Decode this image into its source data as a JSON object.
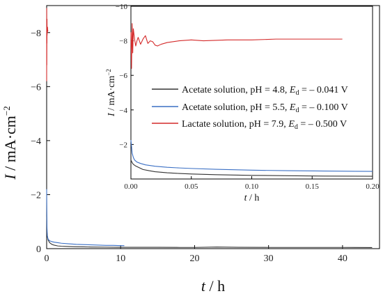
{
  "chart_data": [
    {
      "type": "line",
      "xlabel_var": "t",
      "xlabel_unit": " / h",
      "ylabel_var": "I",
      "ylabel_unit": " / mA·cm",
      "ylabel_exp": "−2",
      "xlim": [
        0,
        45
      ],
      "ylim": [
        0,
        -9
      ],
      "xticks": [
        0,
        10,
        20,
        30,
        40
      ],
      "xtick_labels": [
        "0",
        "10",
        "20",
        "30",
        "40"
      ],
      "yticks": [
        0,
        -2,
        -4,
        -6,
        -8
      ],
      "ytick_labels": [
        "0",
        "−2",
        "−4",
        "−6",
        "−8"
      ],
      "series": [
        {
          "color": "#333333",
          "x": [
            0,
            0.03,
            0.06,
            0.1,
            0.2,
            0.4,
            0.7,
            1,
            1.5,
            2,
            3,
            4,
            5,
            6,
            8,
            10,
            12,
            15,
            18,
            20,
            23,
            26,
            30,
            35,
            40,
            44
          ],
          "y": [
            -1.2,
            -0.85,
            -0.6,
            -0.45,
            -0.32,
            -0.22,
            -0.16,
            -0.13,
            -0.1,
            -0.09,
            -0.08,
            -0.07,
            -0.065,
            -0.06,
            -0.055,
            -0.05,
            -0.05,
            -0.05,
            -0.045,
            -0.045,
            -0.06,
            -0.05,
            -0.045,
            -0.045,
            -0.045,
            -0.04
          ]
        },
        {
          "color": "#3a6fc4",
          "x": [
            0,
            0.02,
            0.04,
            0.06,
            0.1,
            0.2,
            0.4,
            0.7,
            1,
            1.5,
            2,
            3,
            4,
            5,
            6,
            7,
            8,
            9,
            10,
            10.5
          ],
          "y": [
            -2.2,
            -1.5,
            -0.9,
            -0.6,
            -0.45,
            -0.35,
            -0.29,
            -0.26,
            -0.24,
            -0.22,
            -0.2,
            -0.18,
            -0.16,
            -0.15,
            -0.14,
            -0.13,
            -0.12,
            -0.12,
            -0.11,
            -0.11
          ]
        },
        {
          "color": "#d42a2a",
          "x": [
            0,
            0.01,
            0.02,
            0.03,
            0.04,
            0.05,
            0.06,
            0.08,
            0.1,
            0.12,
            0.14,
            0.16,
            0.175
          ],
          "y": [
            -6.2,
            -8.9,
            -6.8,
            -8.3,
            -7.6,
            -8.5,
            -7.9,
            -8.1,
            -8.0,
            -8.2,
            -8.05,
            -8.1,
            -8.1
          ]
        }
      ]
    },
    {
      "type": "line",
      "inset": true,
      "xlabel_var": "t",
      "xlabel_unit": " / h",
      "ylabel_var": "I",
      "ylabel_unit": " / mA·cm",
      "ylabel_exp": "−2",
      "xlim": [
        0,
        0.2
      ],
      "ylim": [
        0,
        -10
      ],
      "xticks": [
        0,
        0.05,
        0.1,
        0.15,
        0.2
      ],
      "xtick_labels": [
        "0.00",
        "0.05",
        "0.10",
        "0.15",
        "0.20"
      ],
      "yticks": [
        -2,
        -4,
        -6,
        -8,
        -10
      ],
      "ytick_labels": [
        "−2",
        "−4",
        "−6",
        "−8",
        "−10"
      ],
      "legend_position": "center-right",
      "series": [
        {
          "name_pre": "Acetate solution, pH = 4.8, ",
          "name_post": " = – 0.041 V",
          "color": "#333333",
          "x": [
            0,
            0.001,
            0.002,
            0.004,
            0.007,
            0.01,
            0.015,
            0.02,
            0.03,
            0.04,
            0.05,
            0.07,
            0.1,
            0.13,
            0.16,
            0.2
          ],
          "y": [
            -1.1,
            -0.95,
            -0.85,
            -0.75,
            -0.65,
            -0.55,
            -0.48,
            -0.42,
            -0.36,
            -0.32,
            -0.29,
            -0.25,
            -0.21,
            -0.19,
            -0.17,
            -0.16
          ]
        },
        {
          "name_pre": "Acetate solution, pH = 5.5, ",
          "name_post": " = – 0.100 V",
          "color": "#3a6fc4",
          "x": [
            0,
            0.0005,
            0.001,
            0.002,
            0.003,
            0.005,
            0.008,
            0.012,
            0.02,
            0.03,
            0.04,
            0.05,
            0.07,
            0.1,
            0.13,
            0.16,
            0.2
          ],
          "y": [
            -2.25,
            -1.9,
            -1.5,
            -1.25,
            -1.1,
            -0.98,
            -0.9,
            -0.82,
            -0.74,
            -0.68,
            -0.64,
            -0.61,
            -0.56,
            -0.51,
            -0.48,
            -0.46,
            -0.44
          ]
        },
        {
          "name_pre": "Lactate solution, pH = 7.9, ",
          "name_post": " = – 0.500 V",
          "color": "#d42a2a",
          "x": [
            0,
            0.0005,
            0.001,
            0.0015,
            0.002,
            0.003,
            0.004,
            0.005,
            0.006,
            0.008,
            0.01,
            0.012,
            0.014,
            0.016,
            0.018,
            0.02,
            0.022,
            0.025,
            0.03,
            0.035,
            0.04,
            0.05,
            0.06,
            0.08,
            0.1,
            0.12,
            0.14,
            0.16,
            0.175
          ],
          "y": [
            -8.5,
            -6.4,
            -9.0,
            -7.3,
            -8.7,
            -8.1,
            -7.7,
            -8.0,
            -8.2,
            -7.8,
            -8.1,
            -8.3,
            -7.85,
            -8.0,
            -7.95,
            -7.75,
            -7.7,
            -7.8,
            -7.9,
            -7.95,
            -8.0,
            -8.05,
            -8.0,
            -8.05,
            -8.05,
            -8.1,
            -8.1,
            -8.1,
            -8.1
          ]
        }
      ]
    }
  ],
  "legend_sub": "E",
  "legend_sub_index": "d"
}
